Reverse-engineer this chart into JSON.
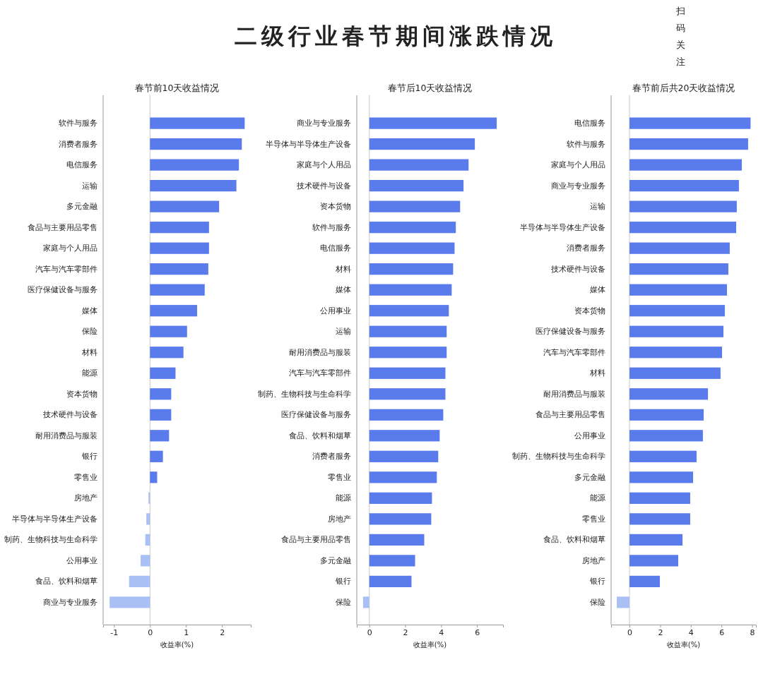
{
  "chart_data": [
    {
      "type": "bar",
      "orientation": "horizontal",
      "title": "春节前10天收益情况",
      "xlabel": "收益率(%)",
      "annotations": [
        "二级行业春节期间涨跌情况",
        "扫码关注"
      ],
      "categories": [
        "软件与服务",
        "消费者服务",
        "电信服务",
        "运输",
        "多元金融",
        "食品与主要用品零售",
        "家庭与个人用品",
        "汽车与汽车零部件",
        "医疗保健设备与服务",
        "媒体",
        "保险",
        "材料",
        "能源",
        "资本货物",
        "技术硬件与设备",
        "耐用消费品与服装",
        "银行",
        "零售业",
        "房地产",
        "半导体与半导体生产设备",
        "制药、生物科技与生命科学",
        "公用事业",
        "食品、饮料和烟草",
        "商业与专业服务"
      ],
      "values": [
        2.63,
        2.55,
        2.47,
        2.4,
        1.92,
        1.64,
        1.64,
        1.62,
        1.52,
        1.31,
        1.03,
        0.93,
        0.71,
        0.59,
        0.59,
        0.53,
        0.36,
        0.2,
        -0.04,
        -0.1,
        -0.13,
        -0.26,
        -0.58,
        -1.12
      ],
      "colors": [
        "#5a7bec",
        "#5a7bec",
        "#5a7bec",
        "#5a7bec",
        "#5a7bec",
        "#5a7bec",
        "#5a7bec",
        "#5a7bec",
        "#5a7bec",
        "#5a7bec",
        "#5a7bec",
        "#5a7bec",
        "#5a7bec",
        "#5a7bec",
        "#5a7bec",
        "#5a7bec",
        "#5a7bec",
        "#5a7bec",
        "#a9c0f5",
        "#a9c0f5",
        "#a9c0f5",
        "#a9c0f5",
        "#a9c0f5",
        "#a9c0f5"
      ],
      "xlim": [
        -1.3,
        2.8
      ],
      "xticks": [
        -1,
        0,
        1,
        2
      ],
      "ref_lines": [
        {
          "axis": "x",
          "value": 0,
          "color": "#c8c8c8"
        }
      ],
      "grid": false
    },
    {
      "type": "bar",
      "orientation": "horizontal",
      "title": "春节后10天收益情况",
      "xlabel": "收益率(%)",
      "categories": [
        "商业与专业服务",
        "半导体与半导体生产设备",
        "家庭与个人用品",
        "技术硬件与设备",
        "资本货物",
        "软件与服务",
        "电信服务",
        "材料",
        "媒体",
        "公用事业",
        "运输",
        "耐用消费品与服装",
        "汽车与汽车零部件",
        "制药、生物科技与生命科学",
        "医疗保健设备与服务",
        "食品、饮料和烟草",
        "消费者服务",
        "零售业",
        "能源",
        "房地产",
        "食品与主要用品零售",
        "多元金融",
        "银行",
        "保险"
      ],
      "values": [
        7.1,
        5.88,
        5.53,
        5.25,
        5.06,
        4.82,
        4.75,
        4.67,
        4.59,
        4.43,
        4.31,
        4.31,
        4.24,
        4.24,
        4.12,
        3.92,
        3.84,
        3.76,
        3.49,
        3.45,
        3.06,
        2.55,
        2.35,
        -0.35
      ],
      "colors": [
        "#5a7bec",
        "#5a7bec",
        "#5a7bec",
        "#5a7bec",
        "#5a7bec",
        "#5a7bec",
        "#5a7bec",
        "#5a7bec",
        "#5a7bec",
        "#5a7bec",
        "#5a7bec",
        "#5a7bec",
        "#5a7bec",
        "#5a7bec",
        "#5a7bec",
        "#5a7bec",
        "#5a7bec",
        "#5a7bec",
        "#5a7bec",
        "#5a7bec",
        "#5a7bec",
        "#5a7bec",
        "#5a7bec",
        "#a9c0f5"
      ],
      "xlim": [
        -0.7,
        7.45
      ],
      "xticks": [
        0,
        2,
        4,
        6
      ],
      "ref_lines": [
        {
          "axis": "x",
          "value": 0,
          "color": "#c8c8c8"
        }
      ],
      "grid": false
    },
    {
      "type": "bar",
      "orientation": "horizontal",
      "title": "春节前后共20天收益情况",
      "xlabel": "收益率(%)",
      "categories": [
        "电信服务",
        "软件与服务",
        "家庭与个人用品",
        "商业与专业服务",
        "运输",
        "半导体与半导体生产设备",
        "消费者服务",
        "技术硬件与设备",
        "媒体",
        "资本货物",
        "医疗保健设备与服务",
        "汽车与汽车零部件",
        "材料",
        "耐用消费品与服装",
        "食品与主要用品零售",
        "公用事业",
        "制药、生物科技与生命科学",
        "多元金融",
        "能源",
        "零售业",
        "食品、饮料和烟草",
        "房地产",
        "银行",
        "保险"
      ],
      "values": [
        7.9,
        7.74,
        7.33,
        7.14,
        7.0,
        6.96,
        6.54,
        6.45,
        6.36,
        6.22,
        6.13,
        6.04,
        5.94,
        5.12,
        4.84,
        4.79,
        4.38,
        4.15,
        3.96,
        3.96,
        3.46,
        3.18,
        1.98,
        -0.83
      ],
      "colors": [
        "#5a7bec",
        "#5a7bec",
        "#5a7bec",
        "#5a7bec",
        "#5a7bec",
        "#5a7bec",
        "#5a7bec",
        "#5a7bec",
        "#5a7bec",
        "#5a7bec",
        "#5a7bec",
        "#5a7bec",
        "#5a7bec",
        "#5a7bec",
        "#5a7bec",
        "#5a7bec",
        "#5a7bec",
        "#5a7bec",
        "#5a7bec",
        "#5a7bec",
        "#5a7bec",
        "#5a7bec",
        "#5a7bec",
        "#a9c0f5"
      ],
      "xlim": [
        -1.2,
        8.25
      ],
      "xticks": [
        0,
        2,
        4,
        6,
        8
      ],
      "ref_lines": [
        {
          "axis": "x",
          "value": 0,
          "color": "#c8c8c8"
        }
      ],
      "grid": false
    }
  ]
}
